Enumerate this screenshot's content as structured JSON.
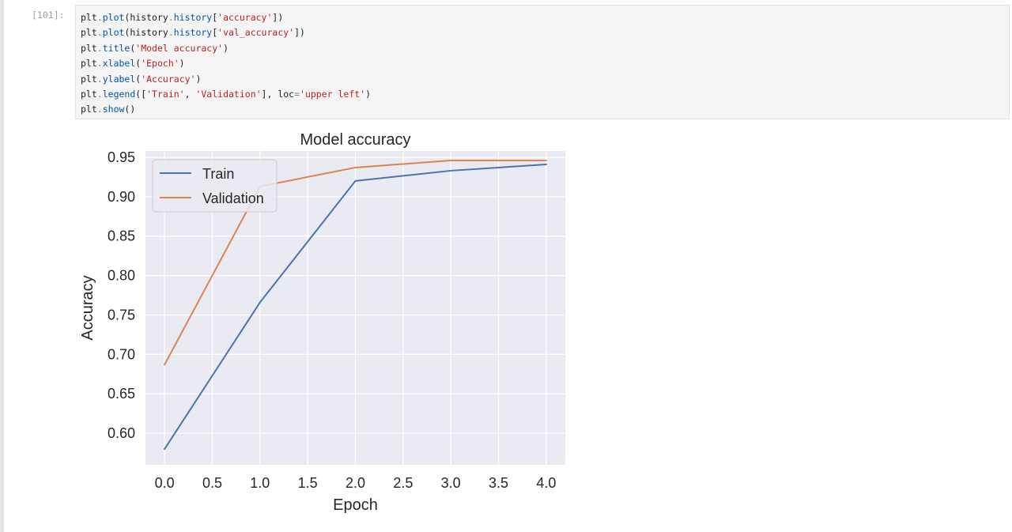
{
  "notebook": {
    "cell": {
      "prompt": "[101]:",
      "code_lines": [
        [
          {
            "t": "plt"
          },
          {
            "t": ".",
            "k": "op"
          },
          {
            "t": "plot",
            "k": "attr"
          },
          {
            "t": "(history"
          },
          {
            "t": ".",
            "k": "op"
          },
          {
            "t": "history",
            "k": "attr"
          },
          {
            "t": "["
          },
          {
            "t": "'accuracy'",
            "k": "str"
          },
          {
            "t": "])"
          }
        ],
        [
          {
            "t": "plt"
          },
          {
            "t": ".",
            "k": "op"
          },
          {
            "t": "plot",
            "k": "attr"
          },
          {
            "t": "(history"
          },
          {
            "t": ".",
            "k": "op"
          },
          {
            "t": "history",
            "k": "attr"
          },
          {
            "t": "["
          },
          {
            "t": "'val_accuracy'",
            "k": "str"
          },
          {
            "t": "])"
          }
        ],
        [
          {
            "t": "plt"
          },
          {
            "t": ".",
            "k": "op"
          },
          {
            "t": "title",
            "k": "attr"
          },
          {
            "t": "("
          },
          {
            "t": "'Model accuracy'",
            "k": "str"
          },
          {
            "t": ")"
          }
        ],
        [
          {
            "t": "plt"
          },
          {
            "t": ".",
            "k": "op"
          },
          {
            "t": "xlabel",
            "k": "attr"
          },
          {
            "t": "("
          },
          {
            "t": "'Epoch'",
            "k": "str"
          },
          {
            "t": ")"
          }
        ],
        [
          {
            "t": "plt"
          },
          {
            "t": ".",
            "k": "op"
          },
          {
            "t": "ylabel",
            "k": "attr"
          },
          {
            "t": "("
          },
          {
            "t": "'Accuracy'",
            "k": "str"
          },
          {
            "t": ")"
          }
        ],
        [
          {
            "t": "plt"
          },
          {
            "t": ".",
            "k": "op"
          },
          {
            "t": "legend",
            "k": "attr"
          },
          {
            "t": "(["
          },
          {
            "t": "'Train'",
            "k": "str"
          },
          {
            "t": ", "
          },
          {
            "t": "'Validation'",
            "k": "str"
          },
          {
            "t": "], loc"
          },
          {
            "t": "=",
            "k": "op"
          },
          {
            "t": "'upper left'",
            "k": "str"
          },
          {
            "t": ")"
          }
        ],
        [
          {
            "t": "plt"
          },
          {
            "t": ".",
            "k": "op"
          },
          {
            "t": "show",
            "k": "attr"
          },
          {
            "t": "()"
          }
        ]
      ]
    }
  },
  "chart_data": {
    "type": "line",
    "title": "Model accuracy",
    "xlabel": "Epoch",
    "ylabel": "Accuracy",
    "x": [
      0,
      1,
      2,
      3,
      4
    ],
    "xlim": [
      -0.2,
      4.2
    ],
    "ylim": [
      0.56,
      0.958
    ],
    "xticks": [
      0,
      0.5,
      1,
      1.5,
      2,
      2.5,
      3,
      3.5,
      4
    ],
    "xtick_labels": [
      "0.0",
      "0.5",
      "1.0",
      "1.5",
      "2.0",
      "2.5",
      "3.0",
      "3.5",
      "4.0"
    ],
    "yticks": [
      0.6,
      0.65,
      0.7,
      0.75,
      0.8,
      0.85,
      0.9,
      0.95
    ],
    "ytick_labels": [
      "0.60",
      "0.65",
      "0.70",
      "0.75",
      "0.80",
      "0.85",
      "0.90",
      "0.95"
    ],
    "grid": true,
    "legend_position": "upper-left",
    "series": [
      {
        "name": "Train",
        "color": "#4c72b0",
        "values": [
          0.58,
          0.766,
          0.92,
          0.933,
          0.941
        ]
      },
      {
        "name": "Validation",
        "color": "#dd8452",
        "values": [
          0.687,
          0.913,
          0.937,
          0.946,
          0.946
        ]
      }
    ],
    "plot_background": "#eaeaf2"
  }
}
